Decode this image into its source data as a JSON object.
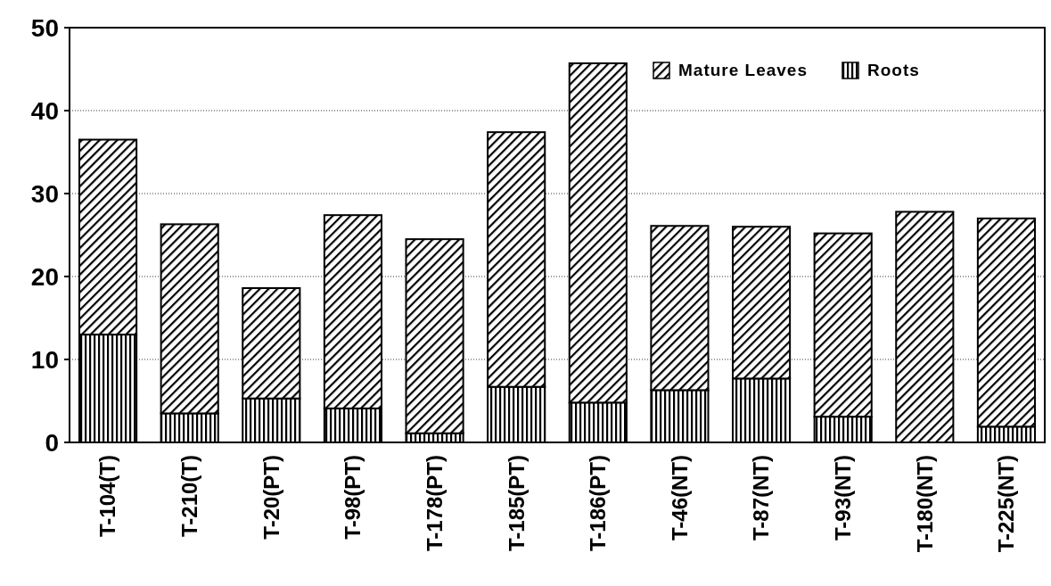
{
  "chart_data": {
    "type": "bar",
    "stacked": true,
    "categories": [
      "T-104(T)",
      "T-210(T)",
      "T-20(PT)",
      "T-98(PT)",
      "T-178(PT)",
      "T-185(PT)",
      "T-186(PT)",
      "T-46(NT)",
      "T-87(NT)",
      "T-93(NT)",
      "T-180(NT)",
      "T-225(NT)"
    ],
    "series": [
      {
        "name": "Roots",
        "color": "#000000",
        "values": [
          13.0,
          3.5,
          5.3,
          4.1,
          1.1,
          6.7,
          4.8,
          6.3,
          7.7,
          3.1,
          0,
          1.9
        ]
      },
      {
        "name": "Mature Leaves",
        "color": "#000000",
        "values": [
          23.5,
          22.8,
          13.3,
          23.3,
          23.4,
          30.7,
          40.9,
          19.8,
          18.3,
          22.1,
          27.8,
          25.1
        ]
      }
    ],
    "ylim": [
      0,
      50
    ],
    "yticks": [
      0,
      10,
      20,
      30,
      40,
      50
    ],
    "grid": "y",
    "legend": "top right"
  }
}
